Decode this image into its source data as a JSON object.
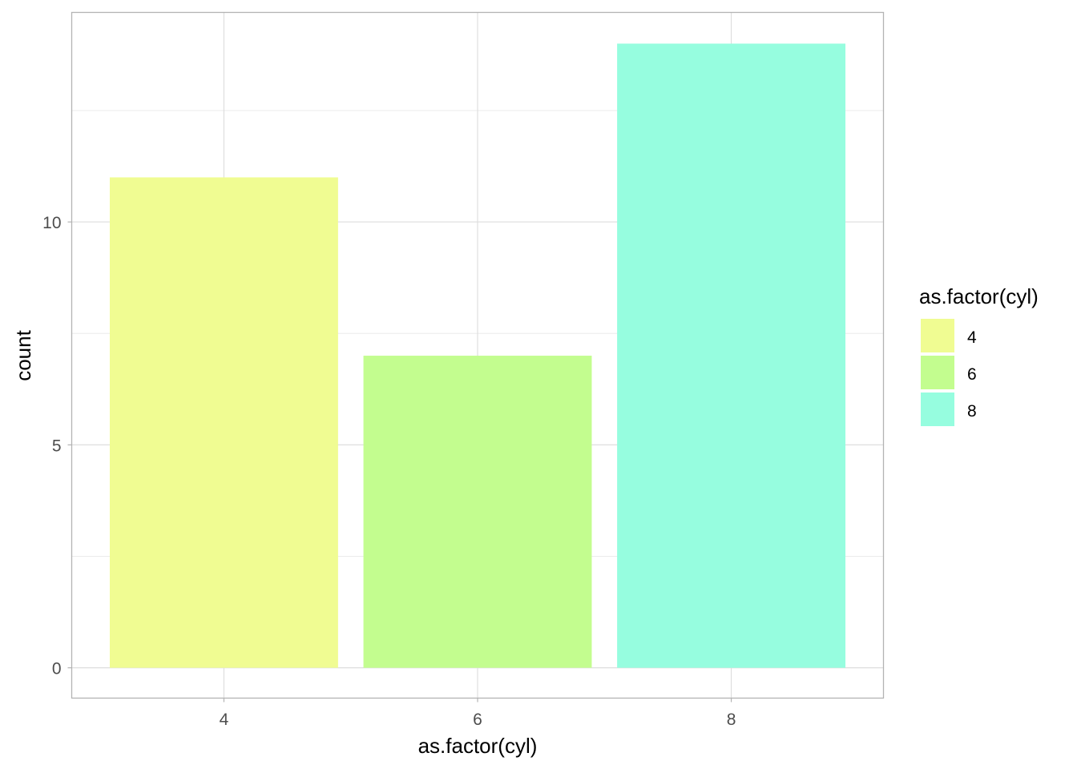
{
  "chart_data": {
    "type": "bar",
    "title": "",
    "xlabel": "as.factor(cyl)",
    "ylabel": "count",
    "categories": [
      "4",
      "6",
      "8"
    ],
    "values": [
      11,
      7,
      14
    ],
    "colors": [
      "#F0FC92",
      "#C3FD8F",
      "#96FDDF"
    ],
    "ylim": [
      -0.68,
      14.7
    ],
    "yticks": [
      0,
      5,
      10
    ],
    "grid": true,
    "legend": {
      "title": "as.factor(cyl)",
      "position": "right",
      "entries": [
        "4",
        "6",
        "8"
      ]
    }
  }
}
